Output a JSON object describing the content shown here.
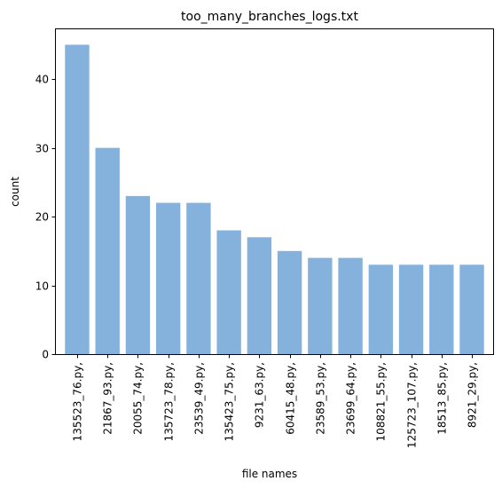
{
  "chart_data": {
    "type": "bar",
    "title": "too_many_branches_logs.txt",
    "xlabel": "file names",
    "ylabel": "count",
    "categories": [
      "135523_76.py,",
      "21867_93.py,",
      "20055_74.py,",
      "135723_78.py,",
      "23539_49.py,",
      "135423_75.py,",
      "9231_63.py,",
      "60415_48.py,",
      "23589_53.py,",
      "23699_64.py,",
      "108821_55.py,",
      "125723_107.py,",
      "18513_85.py,",
      "8921_29.py,"
    ],
    "values": [
      45,
      30,
      23,
      22,
      22,
      18,
      17,
      15,
      14,
      14,
      13,
      13,
      13,
      13
    ],
    "ylim": [
      0,
      47.25
    ],
    "yticks": [
      0,
      10,
      20,
      30,
      40
    ],
    "bar_color": "#85b1dd",
    "grid": false,
    "legend": "none"
  }
}
